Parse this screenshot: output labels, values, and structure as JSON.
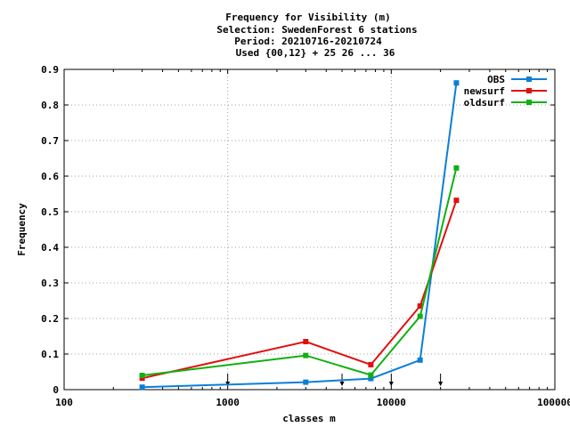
{
  "chart_data": {
    "type": "line",
    "title_lines": [
      "Frequency  for Visibility (m)",
      "Selection: SwedenForest      6 stations",
      "Period: 20210716-20210724",
      "Used {00,12} + 25 26 ... 36"
    ],
    "xlabel": "classes m",
    "ylabel": "Frequency",
    "xscale": "log",
    "xlim": [
      100,
      100000
    ],
    "ylim": [
      0,
      0.9
    ],
    "x_ticks": [
      100,
      1000,
      10000,
      100000
    ],
    "x_tick_labels": [
      "100",
      "1000",
      "10000",
      "100000"
    ],
    "y_ticks": [
      0,
      0.1,
      0.2,
      0.3,
      0.4,
      0.5,
      0.6,
      0.7,
      0.8,
      0.9
    ],
    "y_tick_labels": [
      "0",
      "0.1",
      "0.2",
      "0.3",
      "0.4",
      "0.5",
      "0.6",
      "0.7",
      "0.8",
      "0.9"
    ],
    "grid": true,
    "legend_position": "top-right",
    "class_boundary_markers": [
      1000,
      5000,
      10000,
      20000
    ],
    "x": [
      300,
      3000,
      7500,
      15000,
      25000
    ],
    "series": [
      {
        "name": "OBS",
        "color": "#0b7fd6",
        "values": [
          0.007,
          0.021,
          0.031,
          0.083,
          0.862
        ]
      },
      {
        "name": "newsurf",
        "color": "#e01010",
        "values": [
          0.032,
          0.135,
          0.07,
          0.235,
          0.532
        ]
      },
      {
        "name": "oldsurf",
        "color": "#10b010",
        "values": [
          0.04,
          0.096,
          0.041,
          0.206,
          0.623
        ]
      }
    ]
  }
}
